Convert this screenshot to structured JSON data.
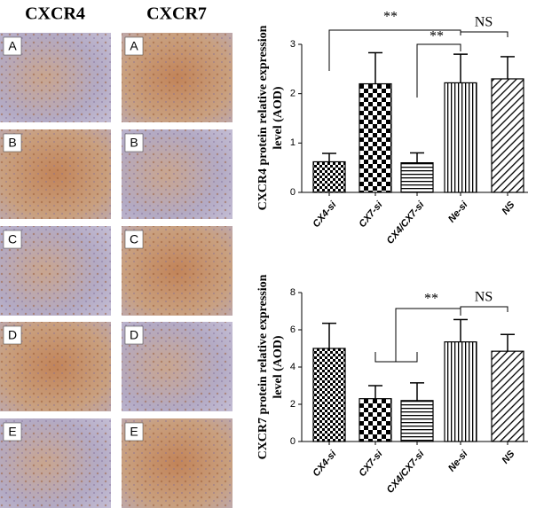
{
  "panels": {
    "columns": [
      "CXCR4",
      "CXCR7"
    ],
    "rows": [
      "A",
      "B",
      "C",
      "D",
      "E"
    ]
  },
  "chart_data": [
    {
      "type": "bar",
      "ylabel": "CXCR4 protein relative expression level (AOD)",
      "categories": [
        "CX4-si",
        "CX7-si",
        "CX4/CX7-si",
        "Ne-si",
        "NS"
      ],
      "values": [
        0.62,
        2.2,
        0.6,
        2.22,
        2.3
      ],
      "errors": [
        0.17,
        0.63,
        0.2,
        0.58,
        0.45
      ],
      "ylim": [
        0,
        3
      ],
      "yticks": [
        0,
        1,
        2,
        3
      ],
      "annotations": [
        "**",
        "**",
        "NS"
      ]
    },
    {
      "type": "bar",
      "ylabel": "CXCR7 protein relative expression level (AOD)",
      "categories": [
        "CX4-si",
        "CX7-si",
        "CX4/CX7-si",
        "Ne-si",
        "NS"
      ],
      "values": [
        5.0,
        2.3,
        2.2,
        5.35,
        4.85
      ],
      "errors": [
        1.35,
        0.7,
        0.95,
        1.2,
        0.9
      ],
      "ylim": [
        0,
        8
      ],
      "yticks": [
        0,
        2,
        4,
        6,
        8
      ],
      "annotations": [
        "**",
        "NS"
      ]
    }
  ]
}
